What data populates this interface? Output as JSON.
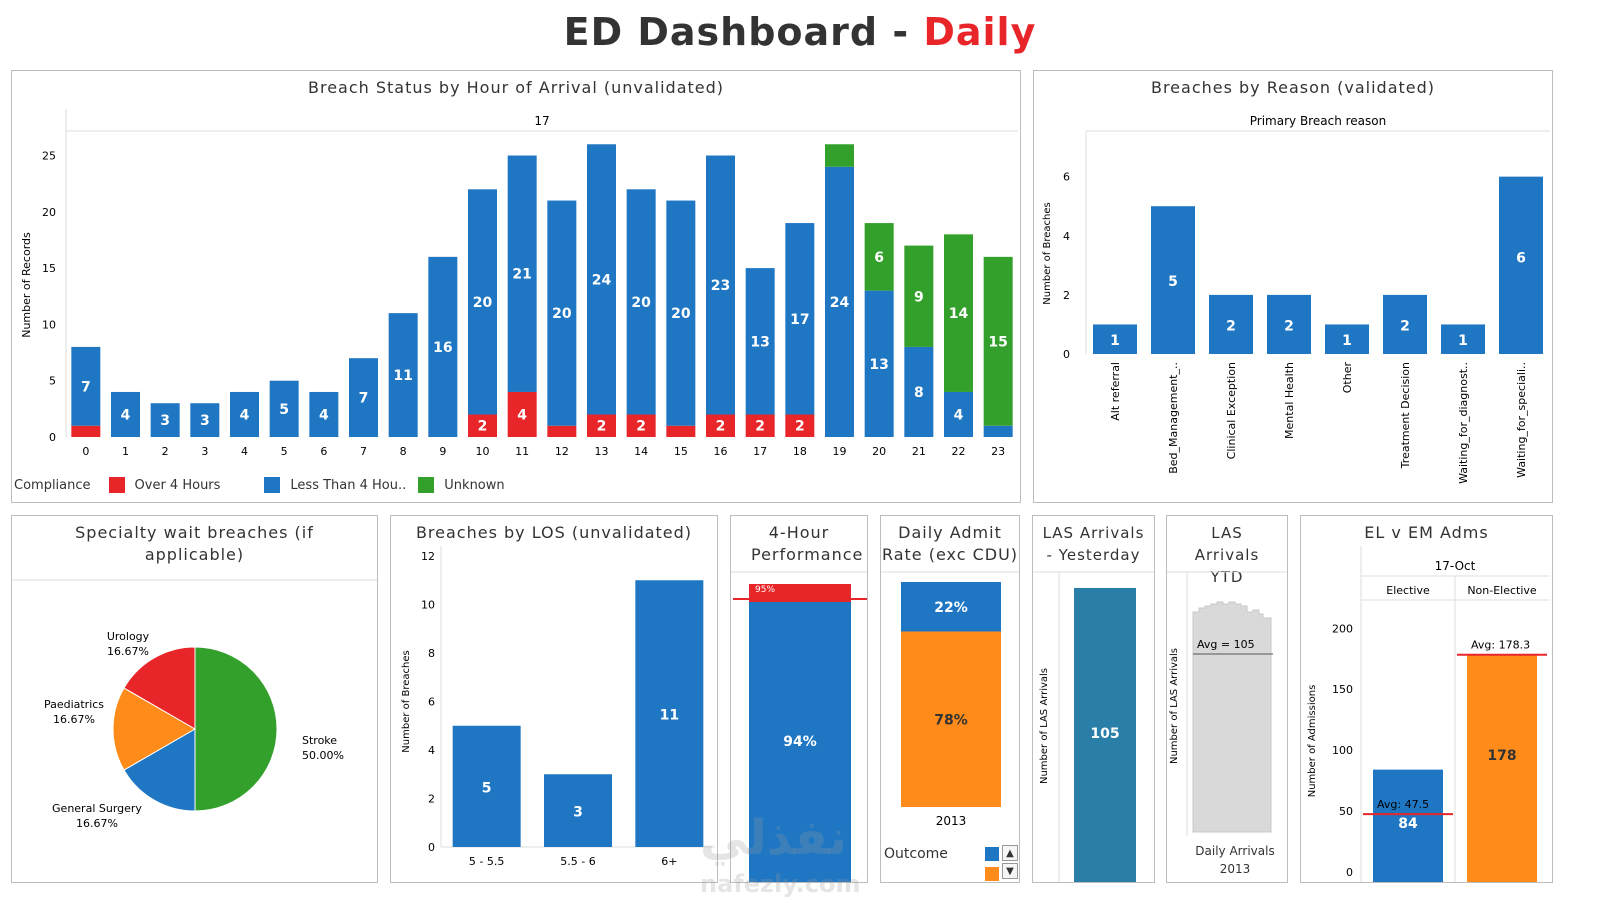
{
  "title": {
    "main": "ED Dashboard - ",
    "accent": "Daily"
  },
  "colors": {
    "blue": "#1f77c4",
    "red": "#e8262a",
    "green": "#33a02c",
    "orange": "#ff8c1a",
    "grey": "#d3d3d3",
    "teal": "#2a7fa8"
  },
  "p1": {
    "title": "Breach Status by Hour of Arrival (unvalidated)",
    "header": "17",
    "ylabel": "Number of Records",
    "legend_title": "Compliance",
    "legend": [
      "Over 4 Hours",
      "Less Than 4 Hou..",
      "Unknown"
    ]
  },
  "p2": {
    "title": "Breaches by Reason (validated)",
    "subtitle": "Primary Breach reason",
    "ylabel": "Number of Breaches"
  },
  "p3": {
    "title": "Specialty wait breaches (if applicable)"
  },
  "p4": {
    "title": "Breaches by LOS (unvalidated)",
    "ylabel": "Number of Breaches"
  },
  "p5": {
    "title": "4-Hour Performance"
  },
  "p6": {
    "title": "Daily Admit Rate (exc CDU)",
    "year": "2013",
    "legend_label": "Outcome"
  },
  "p7": {
    "title": "LAS Arrivals - Yesterday",
    "ylabel": "Number of LAS Arrivals"
  },
  "p8": {
    "title": "LAS Arrivals YTD",
    "ylabel": "Number of LAS Arrivals",
    "footer": "Daily Arrivals 2013"
  },
  "p9": {
    "title": "EL v EM Adms",
    "header": "17-Oct",
    "ylabel": "Number of Admissions"
  },
  "watermark": {
    "text": "نفذلي",
    "sub": "nafezly.com"
  },
  "chart_data": [
    {
      "type": "bar",
      "title": "Breach Status by Hour of Arrival (unvalidated)",
      "xlabel": "",
      "ylabel": "Number of Records",
      "categories": [
        "0",
        "1",
        "2",
        "3",
        "4",
        "5",
        "6",
        "7",
        "8",
        "9",
        "10",
        "11",
        "12",
        "13",
        "14",
        "15",
        "16",
        "17",
        "18",
        "19",
        "20",
        "21",
        "22",
        "23"
      ],
      "ylim": [
        0,
        27
      ],
      "yticks": [
        0,
        5,
        10,
        15,
        20,
        25
      ],
      "series": [
        {
          "name": "Over 4 Hours",
          "values": [
            1,
            0,
            0,
            0,
            0,
            0,
            0,
            0,
            0,
            0,
            2,
            4,
            1,
            2,
            2,
            1,
            2,
            2,
            2,
            0,
            0,
            0,
            0,
            0
          ]
        },
        {
          "name": "Less Than 4 Hou..",
          "values": [
            7,
            4,
            3,
            3,
            4,
            5,
            4,
            7,
            11,
            16,
            20,
            21,
            20,
            24,
            20,
            20,
            23,
            13,
            17,
            24,
            13,
            8,
            4,
            1
          ]
        },
        {
          "name": "Unknown",
          "values": [
            0,
            0,
            0,
            0,
            0,
            0,
            0,
            0,
            0,
            0,
            0,
            0,
            0,
            0,
            0,
            0,
            0,
            0,
            0,
            2,
            6,
            9,
            14,
            15
          ]
        }
      ],
      "labels": {
        "blue": [
          7,
          4,
          3,
          3,
          4,
          5,
          4,
          7,
          11,
          16,
          20,
          21,
          20,
          24,
          20,
          20,
          23,
          13,
          17,
          24,
          13,
          8,
          4,
          null
        ],
        "red": [
          null,
          null,
          null,
          null,
          null,
          null,
          null,
          null,
          null,
          null,
          2,
          4,
          null,
          2,
          2,
          null,
          2,
          2,
          2,
          null,
          null,
          null,
          null,
          null
        ],
        "green": [
          null,
          null,
          null,
          null,
          null,
          null,
          null,
          null,
          null,
          null,
          null,
          null,
          null,
          null,
          null,
          null,
          null,
          null,
          null,
          null,
          6,
          9,
          14,
          15
        ]
      },
      "legend_position": "bottom-left"
    },
    {
      "type": "bar",
      "title": "Breaches by Reason (validated)",
      "subtitle": "Primary Breach reason",
      "ylabel": "Number of Breaches",
      "categories": [
        "Alt referral",
        "Bed_Management_..",
        "Clinical Exception",
        "Mental Health",
        "Other",
        "Treatment Decision",
        "Waiting_for_diagnost..",
        "Waiting_for_speciali.."
      ],
      "values": [
        1,
        5,
        2,
        2,
        1,
        2,
        1,
        6
      ],
      "ylim": [
        0,
        6.8
      ],
      "yticks": [
        0,
        2,
        4,
        6
      ]
    },
    {
      "type": "pie",
      "title": "Specialty wait breaches (if applicable)",
      "slices": [
        {
          "label": "Stroke",
          "pct_label": "50.00%",
          "value": 50
        },
        {
          "label": "General Surgery",
          "pct_label": "16.67%",
          "value": 16.67
        },
        {
          "label": "Paediatrics",
          "pct_label": "16.67%",
          "value": 16.67
        },
        {
          "label": "Urology",
          "pct_label": "16.67%",
          "value": 16.67
        }
      ]
    },
    {
      "type": "bar",
      "title": "Breaches by LOS (unvalidated)",
      "ylabel": "Number of Breaches",
      "categories": [
        "5 - 5.5",
        "5.5 - 6",
        "6+"
      ],
      "values": [
        5,
        3,
        11
      ],
      "ylim": [
        0,
        12
      ],
      "yticks": [
        0,
        2,
        4,
        6,
        8,
        10,
        12
      ]
    },
    {
      "type": "bar",
      "title": "4-Hour Performance",
      "values": [
        94,
        6
      ],
      "labels": [
        "94%",
        "95%"
      ],
      "target": 95
    },
    {
      "type": "bar",
      "title": "Daily Admit Rate (exc CDU)",
      "categories": [
        "2013"
      ],
      "values": [
        22,
        78
      ],
      "labels": [
        "22%",
        "78%"
      ]
    },
    {
      "type": "bar",
      "title": "LAS Arrivals - Yesterday",
      "ylabel": "Number of LAS Arrivals",
      "values": [
        105
      ]
    },
    {
      "type": "area",
      "title": "LAS Arrivals YTD",
      "ylabel": "Number of LAS Arrivals",
      "xlabel": "Daily Arrivals 2013",
      "avg_label": "Avg = 105",
      "avg": 105
    },
    {
      "type": "bar",
      "title": "EL v EM Adms",
      "header": "17-Oct",
      "ylabel": "Number of Admissions",
      "categories": [
        "Elective",
        "Non-Elective"
      ],
      "values": [
        84,
        178
      ],
      "avg": [
        47.5,
        178.3
      ],
      "avg_labels": [
        "Avg: 47.5",
        "Avg: 178.3"
      ],
      "ylim": [
        0,
        215
      ],
      "yticks": [
        0,
        50,
        100,
        150,
        200
      ]
    }
  ]
}
